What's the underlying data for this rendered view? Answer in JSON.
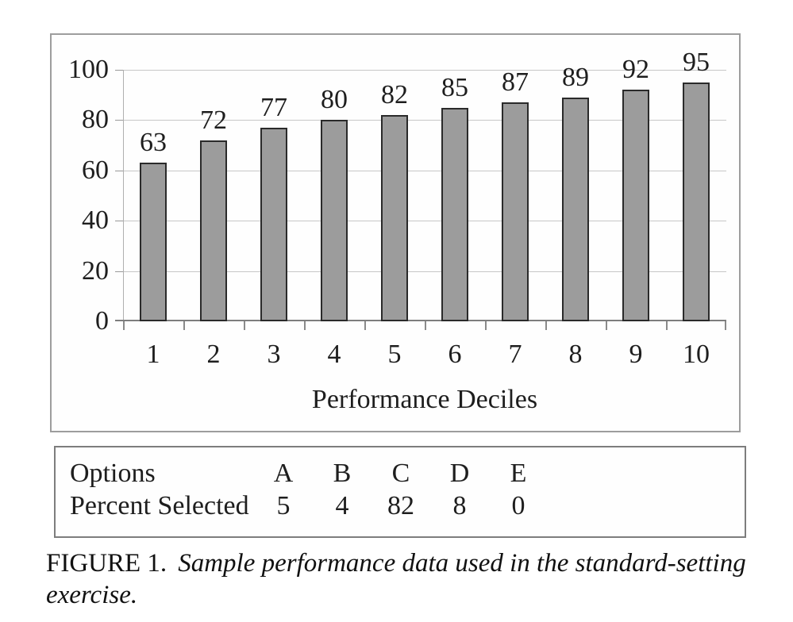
{
  "chart_data": {
    "type": "bar",
    "categories": [
      "1",
      "2",
      "3",
      "4",
      "5",
      "6",
      "7",
      "8",
      "9",
      "10"
    ],
    "values": [
      63,
      72,
      77,
      80,
      82,
      85,
      87,
      89,
      92,
      95
    ],
    "title": "",
    "xlabel": "Performance Deciles",
    "ylabel": "",
    "ylim": [
      0,
      100
    ],
    "y_ticks": [
      0,
      20,
      40,
      60,
      80,
      100
    ],
    "grid": "horizontal",
    "bar_value_labels_shown": true,
    "legend": "none",
    "bar_fill_color": "#9c9c9c",
    "bar_border_color": "#2a2a2a",
    "gridline_color": "#c7c7c7"
  },
  "options_table": {
    "rows": [
      {
        "label": "Options",
        "values": [
          "A",
          "B",
          "C",
          "D",
          "E"
        ]
      },
      {
        "label": "Percent Selected",
        "values": [
          "5",
          "4",
          "82",
          "8",
          "0"
        ]
      }
    ]
  },
  "caption": {
    "label": "FIGURE 1.",
    "line1_italic": "Sample performance data used in the standard-setting",
    "line2_italic": "exercise."
  }
}
